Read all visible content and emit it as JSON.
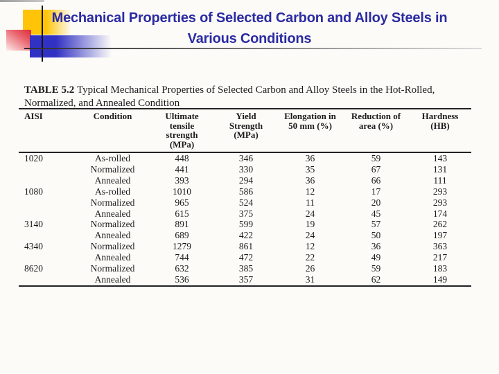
{
  "colors": {
    "title_text": "#2B2BA3",
    "square_yellow": "#FFC408",
    "square_red": "#DE2B3C",
    "square_blue": "#3131C4"
  },
  "title": {
    "line1": "Mechanical Properties of Selected Carbon and Alloy Steels in",
    "line2": "Various Conditions"
  },
  "table": {
    "caption_label": "TABLE 5.2",
    "caption_line1": "Typical Mechanical Properties of Selected Carbon and Alloy Steels in the Hot-Rolled,",
    "caption_line2": "Normalized, and Annealed Condition",
    "columns": [
      {
        "lines": [
          "AISI"
        ]
      },
      {
        "lines": [
          "Condition"
        ]
      },
      {
        "lines": [
          "Ultimate",
          "tensile",
          "strength",
          "(MPa)"
        ]
      },
      {
        "lines": [
          "Yield",
          "Strength",
          "(MPa)"
        ]
      },
      {
        "lines": [
          "Elongation in",
          "50 mm (%)"
        ]
      },
      {
        "lines": [
          "Reduction of",
          "area (%)"
        ]
      },
      {
        "lines": [
          "Hardness",
          "(HB)"
        ]
      }
    ],
    "rows": [
      [
        "1020",
        "As-rolled",
        "448",
        "346",
        "36",
        "59",
        "143"
      ],
      [
        "",
        "Normalized",
        "441",
        "330",
        "35",
        "67",
        "131"
      ],
      [
        "",
        "Annealed",
        "393",
        "294",
        "36",
        "66",
        "111"
      ],
      [
        "1080",
        "As-rolled",
        "1010",
        "586",
        "12",
        "17",
        "293"
      ],
      [
        "",
        "Normalized",
        "965",
        "524",
        "11",
        "20",
        "293"
      ],
      [
        "",
        "Annealed",
        "615",
        "375",
        "24",
        "45",
        "174"
      ],
      [
        "3140",
        "Normalized",
        "891",
        "599",
        "19",
        "57",
        "262"
      ],
      [
        "",
        "Annealed",
        "689",
        "422",
        "24",
        "50",
        "197"
      ],
      [
        "4340",
        "Normalized",
        "1279",
        "861",
        "12",
        "36",
        "363"
      ],
      [
        "",
        "Annealed",
        "744",
        "472",
        "22",
        "49",
        "217"
      ],
      [
        "8620",
        "Normalized",
        "632",
        "385",
        "26",
        "59",
        "183"
      ],
      [
        "",
        "Annealed",
        "536",
        "357",
        "31",
        "62",
        "149"
      ]
    ]
  }
}
